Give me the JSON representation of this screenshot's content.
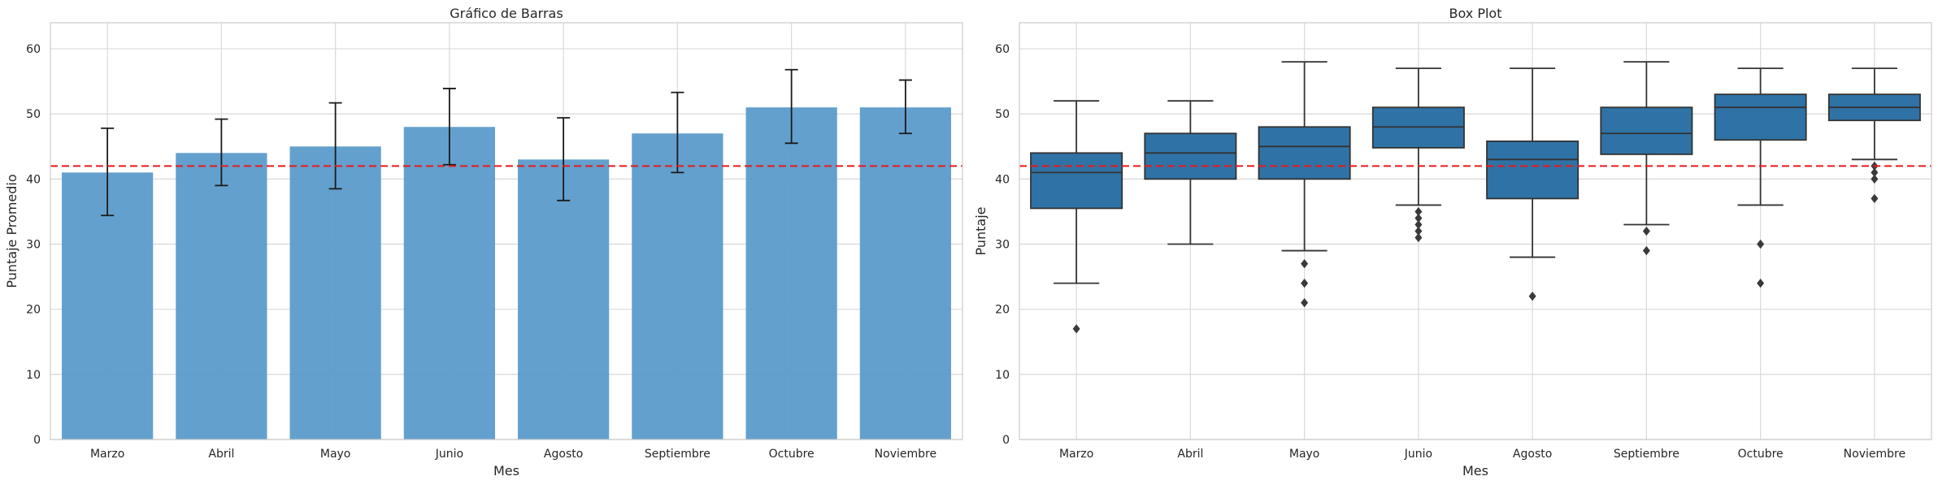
{
  "chart_data": [
    {
      "type": "bar",
      "title": "Gráfico de Barras",
      "xlabel": "Mes",
      "ylabel": "Puntaje Promedio",
      "ylim": [
        0,
        64
      ],
      "yticks": [
        0,
        10,
        20,
        30,
        40,
        50,
        60
      ],
      "grid": true,
      "categories": [
        "Marzo",
        "Abril",
        "Mayo",
        "Junio",
        "Agosto",
        "Septiembre",
        "Octubre",
        "Noviembre"
      ],
      "values": [
        41,
        44,
        45,
        48,
        43,
        47,
        51,
        51
      ],
      "error_low": [
        34.4,
        39.0,
        38.5,
        42.2,
        36.7,
        41.0,
        45.5,
        47.0
      ],
      "error_high": [
        47.8,
        49.2,
        51.7,
        53.9,
        49.4,
        53.3,
        56.8,
        55.2
      ],
      "reference_line": 42,
      "colors": {
        "bar": "#5b9bcb",
        "error": "#1a1a1a",
        "reference": "#e8191c"
      }
    },
    {
      "type": "box",
      "title": "Box Plot",
      "xlabel": "Mes",
      "ylabel": "Puntaje",
      "ylim": [
        0,
        64
      ],
      "yticks": [
        0,
        10,
        20,
        30,
        40,
        50,
        60
      ],
      "grid": true,
      "categories": [
        "Marzo",
        "Abril",
        "Mayo",
        "Junio",
        "Agosto",
        "Septiembre",
        "Octubre",
        "Noviembre"
      ],
      "boxes": [
        {
          "whislo": 24,
          "q1": 35.5,
          "med": 41,
          "q3": 44,
          "whishi": 52,
          "fliers": [
            17
          ]
        },
        {
          "whislo": 30,
          "q1": 40,
          "med": 44,
          "q3": 47,
          "whishi": 52,
          "fliers": []
        },
        {
          "whislo": 29,
          "q1": 40,
          "med": 45,
          "q3": 48,
          "whishi": 58,
          "fliers": [
            27,
            24,
            21
          ]
        },
        {
          "whislo": 36,
          "q1": 44.8,
          "med": 48,
          "q3": 51,
          "whishi": 57,
          "fliers": [
            35,
            34,
            33,
            32,
            31
          ]
        },
        {
          "whislo": 28,
          "q1": 37,
          "med": 43,
          "q3": 45.8,
          "whishi": 57,
          "fliers": [
            22
          ]
        },
        {
          "whislo": 33,
          "q1": 43.8,
          "med": 47,
          "q3": 51,
          "whishi": 58,
          "fliers": [
            32,
            29
          ]
        },
        {
          "whislo": 36,
          "q1": 46,
          "med": 51,
          "q3": 53,
          "whishi": 57,
          "fliers": [
            30,
            24
          ]
        },
        {
          "whislo": 43,
          "q1": 49,
          "med": 51,
          "q3": 53,
          "whishi": 57,
          "fliers": [
            42,
            41,
            40,
            37
          ]
        }
      ],
      "reference_line": 42,
      "colors": {
        "box": "#2f72a6",
        "line": "#333333",
        "reference": "#e8191c"
      }
    }
  ]
}
